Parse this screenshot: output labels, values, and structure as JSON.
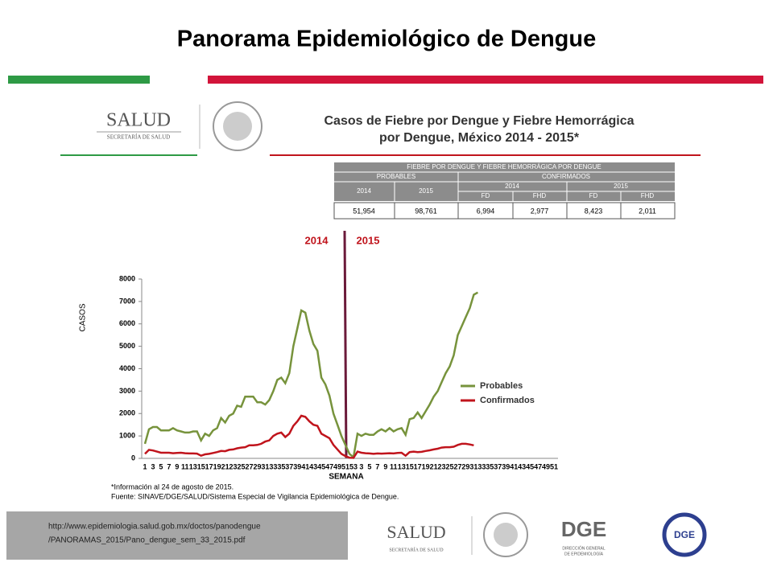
{
  "slide": {
    "title": "Panorama Epidemiológico de Dengue",
    "footer_url": [
      "http://www.epidemiologia.salud.gob.mx/doctos/panodengue",
      "/PANORAMAS_2015/Pano_dengue_sem_33_2015.pdf"
    ],
    "logo_salud": "SALUD",
    "logo_salud_sub": "SECRETARÍA DE SALUD",
    "logo_dge": "DGE",
    "logo_dge_sub": [
      "DIRECCIÓN GENERAL",
      "DE EPIDEMIOLOGÍA"
    ]
  },
  "table": {
    "title": "FIEBRE POR DENGUE Y FIEBRE HEMORRÁGICA POR DENGUE",
    "groups": [
      "PROBABLES",
      "CONFIRMADOS"
    ],
    "years": [
      "2014",
      "2015",
      "2014",
      "2015"
    ],
    "subcolumns": [
      "FD",
      "FHD",
      "FD",
      "FHD"
    ],
    "row": [
      "51,954",
      "98,761",
      "6,994",
      "2,977",
      "8,423",
      "2,011"
    ]
  },
  "chart_data": {
    "type": "line",
    "title": [
      "Casos de Fiebre por Dengue y Fiebre Hemorrágica",
      "por Dengue, México 2014 - 2015*"
    ],
    "y_label": "CASOS",
    "x_label": "SEMANA",
    "annotations": [
      "2014",
      "2015"
    ],
    "notes": [
      "*Información al 24 de agosto de 2015.",
      "Fuente: SINAVE/DGE/SALUD/Sistema Especial de Vigilancia Epidemiológica de Dengue."
    ],
    "categories": [
      "1",
      null,
      "3",
      null,
      "5",
      null,
      "7",
      null,
      "9",
      null,
      "11",
      null,
      "13",
      null,
      "15",
      null,
      "17",
      null,
      "19",
      null,
      "21",
      null,
      "23",
      null,
      "25",
      null,
      "27",
      null,
      "29",
      null,
      "31",
      null,
      "33",
      null,
      "35",
      null,
      "37",
      null,
      "39",
      null,
      "41",
      null,
      "43",
      null,
      "45",
      null,
      "47",
      null,
      "49",
      null,
      "51",
      null,
      "53",
      null,
      "3",
      null,
      "5",
      null,
      "7",
      null,
      "9",
      null,
      "11",
      null,
      "13",
      null,
      "15",
      null,
      "17",
      null,
      "19",
      null,
      "21",
      null,
      "23",
      null,
      "25",
      null,
      "27",
      null,
      "29",
      null,
      "31",
      null,
      "33",
      null,
      "35",
      null,
      "37",
      null,
      "39",
      null,
      "41",
      null,
      "43",
      null,
      "45",
      null,
      "47",
      null,
      "49",
      null,
      "51",
      null
    ],
    "series": [
      {
        "name": "Probables",
        "color": "#77933c",
        "values": [
          650,
          1300,
          1400,
          1400,
          1250,
          1250,
          1250,
          1350,
          1250,
          1200,
          1150,
          1150,
          1200,
          1200,
          800,
          1100,
          1000,
          1250,
          1350,
          1800,
          1600,
          1900,
          2000,
          2350,
          2300,
          2750,
          2750,
          2750,
          2500,
          2500,
          2400,
          2600,
          3000,
          3500,
          3600,
          3350,
          3800,
          5000,
          5800,
          6600,
          6500,
          5700,
          5100,
          4800,
          3600,
          3300,
          2800,
          2000,
          1500,
          1000,
          600,
          200,
          50,
          1100,
          1000,
          1100,
          1050,
          1050,
          1200,
          1300,
          1200,
          1350,
          1200,
          1300,
          1350,
          1050,
          1750,
          1800,
          2050,
          1800,
          2100,
          2400,
          2750,
          3000,
          3400,
          3800,
          4100,
          4600,
          5500,
          5900,
          6300,
          6700,
          7300,
          7400,
          null,
          null,
          null,
          null,
          null,
          null,
          null,
          null,
          null,
          null,
          null,
          null,
          null,
          null,
          null,
          null,
          null,
          null,
          null,
          null
        ]
      },
      {
        "name": "Confirmados",
        "color": "#c0141c",
        "values": [
          200,
          380,
          350,
          300,
          250,
          250,
          250,
          230,
          240,
          250,
          230,
          220,
          220,
          210,
          120,
          180,
          200,
          240,
          280,
          330,
          320,
          380,
          400,
          450,
          480,
          500,
          580,
          580,
          600,
          650,
          750,
          800,
          1000,
          1100,
          1150,
          950,
          1100,
          1450,
          1650,
          1900,
          1850,
          1650,
          1500,
          1450,
          1100,
          1000,
          900,
          600,
          400,
          200,
          100,
          30,
          20,
          300,
          250,
          230,
          220,
          200,
          220,
          210,
          220,
          230,
          220,
          240,
          250,
          120,
          280,
          300,
          280,
          290,
          330,
          360,
          400,
          430,
          480,
          500,
          500,
          520,
          600,
          650,
          650,
          620,
          580,
          null,
          null,
          null,
          null,
          null,
          null,
          null,
          null,
          null,
          null,
          null,
          null,
          null,
          null,
          null,
          null,
          null,
          null,
          null,
          null,
          null
        ]
      }
    ],
    "ylim": [
      0,
      8000
    ],
    "yticks": [
      0,
      1000,
      2000,
      3000,
      4000,
      5000,
      6000,
      7000,
      8000
    ]
  }
}
